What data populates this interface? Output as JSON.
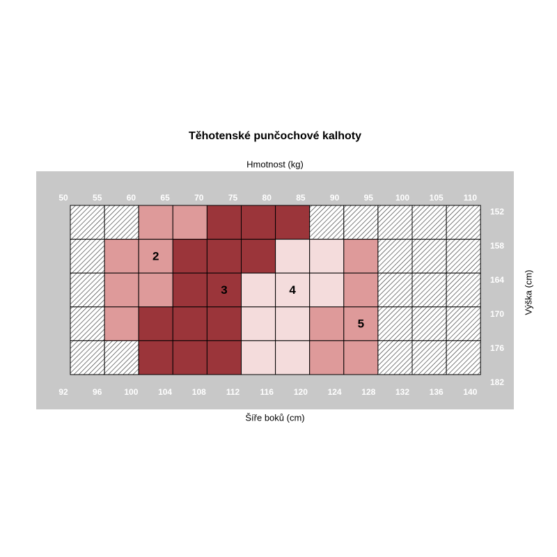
{
  "title": "Těhotenské punčochové kalhoty",
  "top_axis": {
    "label": "Hmotnost (kg)",
    "ticks": [
      50,
      55,
      60,
      65,
      70,
      75,
      80,
      85,
      90,
      95,
      100,
      105,
      110
    ]
  },
  "bottom_axis": {
    "label": "Šíře boků (cm)",
    "ticks": [
      92,
      96,
      100,
      104,
      108,
      112,
      116,
      120,
      124,
      128,
      132,
      136,
      140
    ]
  },
  "right_axis": {
    "label": "Výška (cm)",
    "ticks": [
      152,
      158,
      164,
      170,
      176,
      182
    ]
  },
  "size_colors": {
    "2": "#de9a9a",
    "3": "#9b353a",
    "4": "#f4dcdc",
    "5": "#de9a9a"
  },
  "grid": {
    "rows": [
      [
        null,
        null,
        2,
        2,
        3,
        3,
        3,
        null,
        null,
        null,
        null,
        null
      ],
      [
        null,
        2,
        2,
        3,
        3,
        3,
        4,
        4,
        5,
        null,
        null,
        null
      ],
      [
        null,
        2,
        2,
        3,
        3,
        4,
        4,
        4,
        5,
        null,
        null,
        null
      ],
      [
        null,
        2,
        3,
        3,
        3,
        4,
        4,
        5,
        5,
        null,
        null,
        null
      ],
      [
        null,
        null,
        3,
        3,
        3,
        4,
        4,
        5,
        5,
        null,
        null,
        null
      ]
    ]
  },
  "size_labels": [
    "2",
    "3",
    "4",
    "5"
  ]
}
